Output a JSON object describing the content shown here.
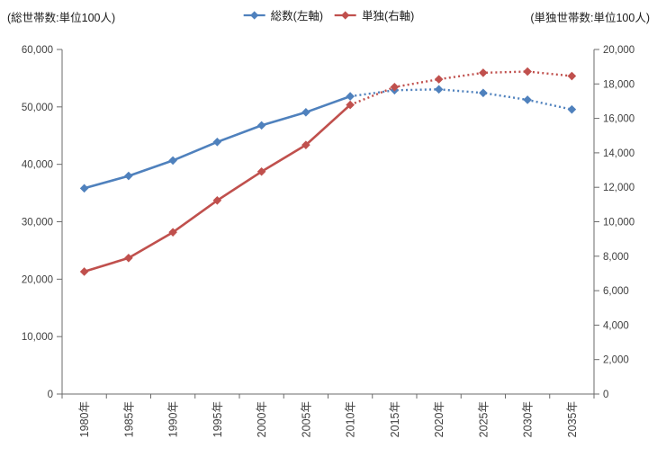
{
  "chart_data": {
    "type": "line",
    "title": "",
    "categories": [
      "1980年",
      "1985年",
      "1990年",
      "1995年",
      "2000年",
      "2005年",
      "2010年",
      "2015年",
      "2020年",
      "2025年",
      "2030年",
      "2035年"
    ],
    "series": [
      {
        "id": "total",
        "name": "総数(左軸)",
        "axis": "left",
        "color": "#4F81BD",
        "marker": "diamond",
        "line_style": "solid_then_dotted",
        "dotted_from_category": "2010年",
        "values": [
          35824,
          37980,
          40670,
          43900,
          46782,
          49063,
          51842,
          52904,
          53053,
          52439,
          51231,
          49555
        ]
      },
      {
        "id": "single",
        "name": "単独(右軸)",
        "axis": "right",
        "color": "#C0504D",
        "marker": "diamond",
        "line_style": "solid_then_dotted",
        "dotted_from_category": "2010年",
        "values": [
          7105,
          7895,
          9390,
          11239,
          12911,
          14457,
          16785,
          17817,
          18270,
          18648,
          18719,
          18457
        ]
      }
    ],
    "axes": {
      "left": {
        "title": "(総世帯数:単位100人)",
        "min": 0,
        "max": 60000,
        "tick_step": 10000
      },
      "right": {
        "title": "(単独世帯数:単位100人)",
        "min": 0,
        "max": 20000,
        "tick_step": 2000
      }
    },
    "legend_position": "top-center",
    "grid": false,
    "colors": {
      "axis_line": "#6b6b6b",
      "tick_text": "#3f3f3f"
    }
  }
}
